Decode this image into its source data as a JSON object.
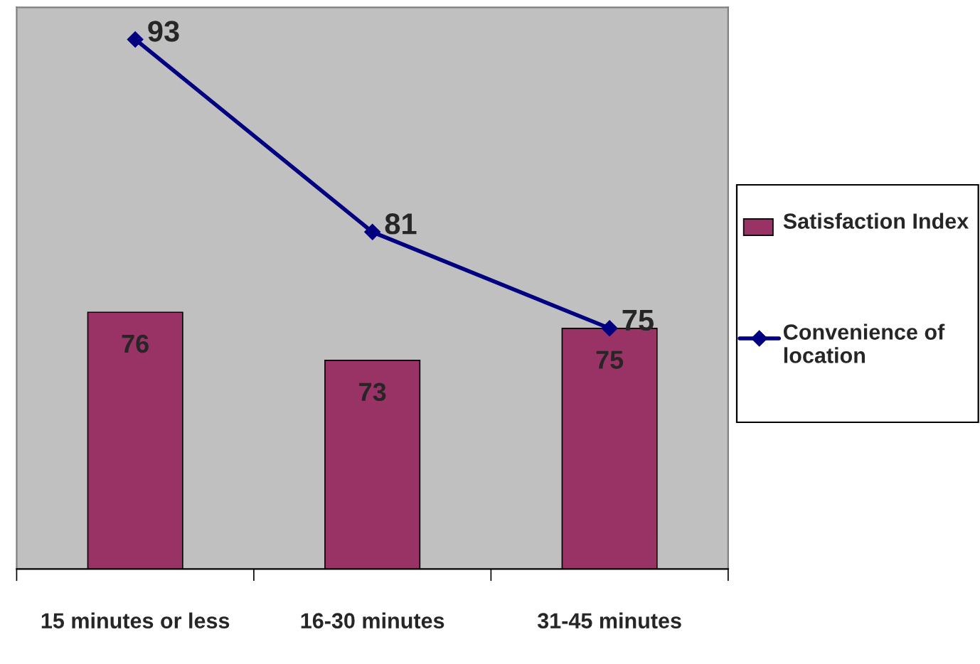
{
  "chart_data": {
    "type": "bar",
    "categories": [
      "15 minutes or less",
      "16-30 minutes",
      "31-45 minutes"
    ],
    "series": [
      {
        "name": "Satisfaction Index",
        "color": "#993366",
        "values": [
          76,
          73,
          75
        ]
      },
      {
        "name": "Convenience of location",
        "type": "line",
        "color": "#000080",
        "values": [
          93,
          81,
          75
        ]
      }
    ],
    "ylim": [
      60,
      95
    ],
    "tick_labels": "x",
    "data_labels": true,
    "legend": "right",
    "marker": "diamond",
    "grid": false
  }
}
